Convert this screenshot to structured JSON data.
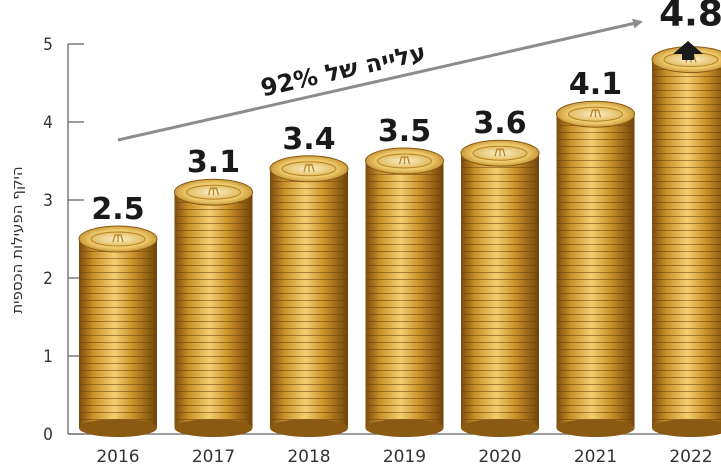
{
  "chart_data": {
    "type": "bar",
    "categories": [
      "2016",
      "2017",
      "2018",
      "2019",
      "2020",
      "2021",
      "2022"
    ],
    "values": [
      2.5,
      3.1,
      3.4,
      3.5,
      3.6,
      4.1,
      4.8
    ],
    "value_labels": [
      "2.5",
      "3.1",
      "3.4",
      "3.5",
      "3.6",
      "4.1",
      "4.8"
    ],
    "ylabel": "היקף הפעילות הכספית",
    "yticks": [
      "0",
      "1",
      "2",
      "3",
      "4",
      "5"
    ],
    "ylim": [
      0,
      5
    ],
    "annotation": "עלייה של 92%",
    "grid": false,
    "bar_style": "stacked-gold-coins",
    "colors": {
      "coin_dark": "#8a5a12",
      "coin_mid": "#c98f28",
      "coin_light": "#f0c766",
      "coin_face": "#f6e3a8",
      "arrow": "#8c8c8c",
      "axis": "#666666"
    }
  }
}
